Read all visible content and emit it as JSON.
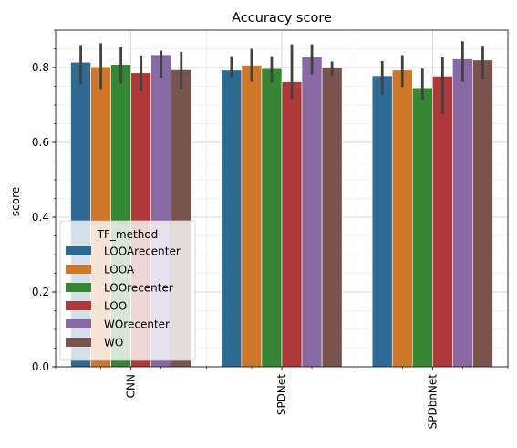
{
  "chart_data": {
    "type": "bar",
    "title": "Accuracy score",
    "xlabel": "",
    "ylabel": "score",
    "ylim": [
      0,
      0.9
    ],
    "yticks": [
      0.0,
      0.2,
      0.4,
      0.6,
      0.8
    ],
    "ytick_labels": [
      "0.0",
      "0.2",
      "0.4",
      "0.6",
      "0.8"
    ],
    "grid": true,
    "legend_title": "TF_method",
    "legend_position": "lower-left",
    "categories": [
      "CNN",
      "SPDNet",
      "SPDbnNet"
    ],
    "series": [
      {
        "name": "LOOArecenter",
        "color": "#3274a1",
        "values": [
          0.814,
          0.793,
          0.778
        ],
        "ci_low": [
          0.755,
          0.772,
          0.727
        ],
        "ci_high": [
          0.86,
          0.83,
          0.817
        ]
      },
      {
        "name": "LOOA",
        "color": "#e1812c",
        "values": [
          0.802,
          0.806,
          0.793
        ],
        "ci_low": [
          0.74,
          0.762,
          0.748
        ],
        "ci_high": [
          0.865,
          0.85,
          0.833
        ]
      },
      {
        "name": "LOOrecenter",
        "color": "#3a923a",
        "values": [
          0.808,
          0.797,
          0.746
        ],
        "ci_low": [
          0.757,
          0.76,
          0.712
        ],
        "ci_high": [
          0.855,
          0.83,
          0.797
        ]
      },
      {
        "name": "LOO",
        "color": "#c03d3e",
        "values": [
          0.786,
          0.762,
          0.777
        ],
        "ci_low": [
          0.737,
          0.715,
          0.676
        ],
        "ci_high": [
          0.832,
          0.862,
          0.827
        ]
      },
      {
        "name": "WOrecenter",
        "color": "#9372b2",
        "values": [
          0.834,
          0.828,
          0.823
        ],
        "ci_low": [
          0.772,
          0.782,
          0.762
        ],
        "ci_high": [
          0.845,
          0.862,
          0.87
        ]
      },
      {
        "name": "WO",
        "color": "#845b53",
        "values": [
          0.794,
          0.799,
          0.82
        ],
        "ci_low": [
          0.742,
          0.777,
          0.768
        ],
        "ci_high": [
          0.842,
          0.816,
          0.858
        ]
      }
    ]
  }
}
